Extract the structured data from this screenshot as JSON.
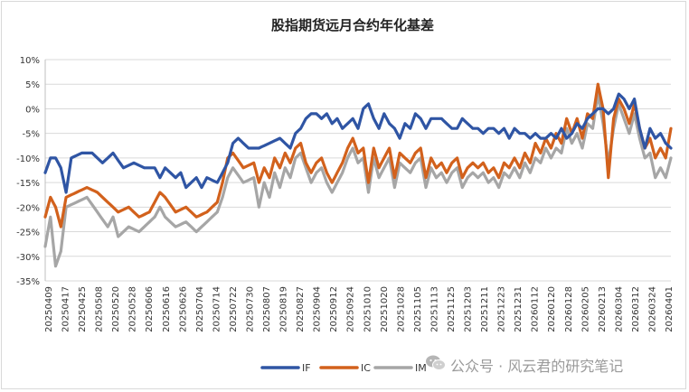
{
  "chart_data": {
    "type": "line",
    "title": "股指期货远月合约年化基差",
    "y_ticks": [
      "10%",
      "5%",
      "0%",
      "-5%",
      "-10%",
      "-15%",
      "-20%",
      "-25%",
      "-30%",
      "-35%"
    ],
    "y_tick_values": [
      10,
      5,
      0,
      -5,
      -10,
      -15,
      -20,
      -25,
      -30,
      -35
    ],
    "ylim": [
      -35,
      10
    ],
    "x_tick_labels": [
      "20250409",
      "20250417",
      "20250425",
      "20250508",
      "20250520",
      "20250528",
      "20250606",
      "20250616",
      "20250626",
      "20250704",
      "20250714",
      "20250722",
      "20250730",
      "20250807",
      "20250819",
      "20250827",
      "20250904",
      "20250912",
      "20250924",
      "20251010",
      "20251020",
      "20251028",
      "20251105",
      "20251113",
      "20251125",
      "20251203",
      "20251211",
      "20251223",
      "20251231",
      "20260112",
      "20260120",
      "20260128",
      "20260205",
      "20260213",
      "20260304",
      "20260312",
      "20260324",
      "20260401"
    ],
    "legend": [
      "IF",
      "IC",
      "IM"
    ],
    "legend_position": "bottom",
    "colors": {
      "IF": "#2f55a4",
      "IC": "#d2611c",
      "IM": "#a6a6a6"
    },
    "n_points": 241,
    "series": [
      {
        "name": "IF",
        "anchors": [
          [
            0,
            -13
          ],
          [
            2,
            -10
          ],
          [
            4,
            -10
          ],
          [
            6,
            -12
          ],
          [
            8,
            -17
          ],
          [
            10,
            -10
          ],
          [
            14,
            -9
          ],
          [
            18,
            -9
          ],
          [
            22,
            -11
          ],
          [
            26,
            -9
          ],
          [
            30,
            -12
          ],
          [
            34,
            -11
          ],
          [
            38,
            -12
          ],
          [
            42,
            -12
          ],
          [
            44,
            -14
          ],
          [
            46,
            -12
          ],
          [
            50,
            -14
          ],
          [
            52,
            -13
          ],
          [
            54,
            -16
          ],
          [
            58,
            -14
          ],
          [
            60,
            -16
          ],
          [
            62,
            -14
          ],
          [
            66,
            -15
          ],
          [
            68,
            -13
          ],
          [
            70,
            -11
          ],
          [
            72,
            -7
          ],
          [
            74,
            -6
          ],
          [
            78,
            -8
          ],
          [
            82,
            -8
          ],
          [
            86,
            -7
          ],
          [
            90,
            -6
          ],
          [
            94,
            -8
          ],
          [
            96,
            -5
          ],
          [
            98,
            -4
          ],
          [
            100,
            -2
          ],
          [
            102,
            -1
          ],
          [
            104,
            -1
          ],
          [
            106,
            -2
          ],
          [
            108,
            -1
          ],
          [
            110,
            -3
          ],
          [
            112,
            -2
          ],
          [
            114,
            -4
          ],
          [
            116,
            -3
          ],
          [
            118,
            -2
          ],
          [
            120,
            -4
          ],
          [
            122,
            0
          ],
          [
            124,
            1
          ],
          [
            126,
            -2
          ],
          [
            128,
            -4
          ],
          [
            130,
            -1
          ],
          [
            132,
            -3
          ],
          [
            134,
            -4
          ],
          [
            136,
            -6
          ],
          [
            138,
            -3
          ],
          [
            140,
            -4
          ],
          [
            142,
            -1
          ],
          [
            144,
            -2
          ],
          [
            146,
            -4
          ],
          [
            148,
            -2
          ],
          [
            150,
            -2
          ],
          [
            152,
            -2
          ],
          [
            154,
            -3
          ],
          [
            156,
            -4
          ],
          [
            158,
            -4
          ],
          [
            160,
            -2
          ],
          [
            162,
            -3
          ],
          [
            164,
            -4
          ],
          [
            166,
            -4
          ],
          [
            168,
            -5
          ],
          [
            170,
            -4
          ],
          [
            172,
            -4
          ],
          [
            174,
            -5
          ],
          [
            176,
            -4
          ],
          [
            178,
            -6
          ],
          [
            180,
            -4
          ],
          [
            182,
            -5
          ],
          [
            184,
            -5
          ],
          [
            186,
            -6
          ],
          [
            188,
            -5
          ],
          [
            190,
            -6
          ],
          [
            192,
            -6
          ],
          [
            194,
            -5
          ],
          [
            196,
            -6
          ],
          [
            198,
            -4
          ],
          [
            200,
            -6
          ],
          [
            202,
            -5
          ],
          [
            204,
            -3
          ],
          [
            206,
            -4
          ],
          [
            208,
            -2
          ],
          [
            210,
            -1
          ],
          [
            212,
            0
          ],
          [
            214,
            0
          ],
          [
            216,
            -1
          ],
          [
            218,
            0
          ],
          [
            220,
            3
          ],
          [
            222,
            2
          ],
          [
            224,
            0
          ],
          [
            226,
            2
          ],
          [
            228,
            -4
          ],
          [
            230,
            -8
          ],
          [
            232,
            -4
          ],
          [
            234,
            -6
          ],
          [
            236,
            -5
          ],
          [
            238,
            -7
          ],
          [
            240,
            -8
          ]
        ]
      },
      {
        "name": "IC",
        "anchors": [
          [
            0,
            -22
          ],
          [
            2,
            -18
          ],
          [
            4,
            -20
          ],
          [
            6,
            -24
          ],
          [
            8,
            -18
          ],
          [
            12,
            -17
          ],
          [
            16,
            -16
          ],
          [
            20,
            -17
          ],
          [
            24,
            -19
          ],
          [
            28,
            -21
          ],
          [
            32,
            -20
          ],
          [
            36,
            -22
          ],
          [
            40,
            -21
          ],
          [
            42,
            -19
          ],
          [
            44,
            -17
          ],
          [
            46,
            -18
          ],
          [
            50,
            -21
          ],
          [
            54,
            -20
          ],
          [
            58,
            -22
          ],
          [
            62,
            -21
          ],
          [
            66,
            -19
          ],
          [
            68,
            -15
          ],
          [
            70,
            -10
          ],
          [
            72,
            -9
          ],
          [
            76,
            -12
          ],
          [
            80,
            -11
          ],
          [
            82,
            -15
          ],
          [
            84,
            -12
          ],
          [
            86,
            -14
          ],
          [
            88,
            -10
          ],
          [
            90,
            -12
          ],
          [
            92,
            -9
          ],
          [
            94,
            -11
          ],
          [
            96,
            -8
          ],
          [
            98,
            -7
          ],
          [
            100,
            -11
          ],
          [
            102,
            -13
          ],
          [
            104,
            -11
          ],
          [
            106,
            -10
          ],
          [
            108,
            -13
          ],
          [
            110,
            -15
          ],
          [
            112,
            -13
          ],
          [
            114,
            -11
          ],
          [
            116,
            -8
          ],
          [
            118,
            -6
          ],
          [
            120,
            -9
          ],
          [
            122,
            -8
          ],
          [
            124,
            -15
          ],
          [
            126,
            -8
          ],
          [
            128,
            -12
          ],
          [
            130,
            -10
          ],
          [
            132,
            -8
          ],
          [
            134,
            -14
          ],
          [
            136,
            -9
          ],
          [
            138,
            -10
          ],
          [
            140,
            -11
          ],
          [
            142,
            -9
          ],
          [
            144,
            -8
          ],
          [
            146,
            -14
          ],
          [
            148,
            -10
          ],
          [
            150,
            -12
          ],
          [
            152,
            -11
          ],
          [
            154,
            -13
          ],
          [
            156,
            -11
          ],
          [
            158,
            -10
          ],
          [
            160,
            -14
          ],
          [
            162,
            -12
          ],
          [
            164,
            -11
          ],
          [
            166,
            -12
          ],
          [
            168,
            -11
          ],
          [
            170,
            -13
          ],
          [
            172,
            -12
          ],
          [
            174,
            -14
          ],
          [
            176,
            -11
          ],
          [
            178,
            -12
          ],
          [
            180,
            -10
          ],
          [
            182,
            -12
          ],
          [
            184,
            -9
          ],
          [
            186,
            -11
          ],
          [
            188,
            -7
          ],
          [
            190,
            -9
          ],
          [
            192,
            -6
          ],
          [
            194,
            -8
          ],
          [
            196,
            -5
          ],
          [
            198,
            -7
          ],
          [
            200,
            -2
          ],
          [
            202,
            -5
          ],
          [
            204,
            -2
          ],
          [
            206,
            -6
          ],
          [
            208,
            -1
          ],
          [
            210,
            -2
          ],
          [
            212,
            5
          ],
          [
            214,
            0
          ],
          [
            216,
            -14
          ],
          [
            218,
            -2
          ],
          [
            220,
            2
          ],
          [
            222,
            0
          ],
          [
            224,
            -3
          ],
          [
            226,
            1
          ],
          [
            228,
            -4
          ],
          [
            230,
            -8
          ],
          [
            232,
            -6
          ],
          [
            234,
            -10
          ],
          [
            236,
            -8
          ],
          [
            238,
            -10
          ],
          [
            240,
            -4
          ]
        ]
      },
      {
        "name": "IM",
        "anchors": [
          [
            0,
            -28
          ],
          [
            2,
            -22
          ],
          [
            4,
            -32
          ],
          [
            6,
            -29
          ],
          [
            8,
            -20
          ],
          [
            12,
            -19
          ],
          [
            16,
            -18
          ],
          [
            20,
            -21
          ],
          [
            24,
            -24
          ],
          [
            26,
            -22
          ],
          [
            28,
            -26
          ],
          [
            32,
            -24
          ],
          [
            36,
            -25
          ],
          [
            40,
            -23
          ],
          [
            42,
            -22
          ],
          [
            44,
            -20
          ],
          [
            46,
            -22
          ],
          [
            50,
            -24
          ],
          [
            54,
            -23
          ],
          [
            58,
            -25
          ],
          [
            62,
            -23
          ],
          [
            66,
            -21
          ],
          [
            68,
            -18
          ],
          [
            70,
            -14
          ],
          [
            72,
            -12
          ],
          [
            76,
            -15
          ],
          [
            80,
            -14
          ],
          [
            82,
            -20
          ],
          [
            84,
            -15
          ],
          [
            86,
            -18
          ],
          [
            88,
            -13
          ],
          [
            90,
            -16
          ],
          [
            92,
            -12
          ],
          [
            94,
            -14
          ],
          [
            96,
            -10
          ],
          [
            98,
            -9
          ],
          [
            100,
            -12
          ],
          [
            102,
            -15
          ],
          [
            104,
            -13
          ],
          [
            106,
            -12
          ],
          [
            108,
            -15
          ],
          [
            110,
            -17
          ],
          [
            112,
            -15
          ],
          [
            114,
            -13
          ],
          [
            116,
            -10
          ],
          [
            118,
            -8
          ],
          [
            120,
            -11
          ],
          [
            122,
            -10
          ],
          [
            124,
            -17
          ],
          [
            126,
            -10
          ],
          [
            128,
            -14
          ],
          [
            130,
            -12
          ],
          [
            132,
            -10
          ],
          [
            134,
            -16
          ],
          [
            136,
            -11
          ],
          [
            138,
            -12
          ],
          [
            140,
            -13
          ],
          [
            142,
            -11
          ],
          [
            144,
            -10
          ],
          [
            146,
            -16
          ],
          [
            148,
            -12
          ],
          [
            150,
            -14
          ],
          [
            152,
            -13
          ],
          [
            154,
            -15
          ],
          [
            156,
            -13
          ],
          [
            158,
            -12
          ],
          [
            160,
            -16
          ],
          [
            162,
            -14
          ],
          [
            164,
            -13
          ],
          [
            166,
            -14
          ],
          [
            168,
            -13
          ],
          [
            170,
            -15
          ],
          [
            172,
            -14
          ],
          [
            174,
            -16
          ],
          [
            176,
            -13
          ],
          [
            178,
            -14
          ],
          [
            180,
            -12
          ],
          [
            182,
            -14
          ],
          [
            184,
            -11
          ],
          [
            186,
            -13
          ],
          [
            188,
            -10
          ],
          [
            190,
            -11
          ],
          [
            192,
            -8
          ],
          [
            194,
            -10
          ],
          [
            196,
            -8
          ],
          [
            198,
            -9
          ],
          [
            200,
            -4
          ],
          [
            202,
            -7
          ],
          [
            204,
            -5
          ],
          [
            206,
            -8
          ],
          [
            208,
            -3
          ],
          [
            210,
            -4
          ],
          [
            212,
            3
          ],
          [
            214,
            -3
          ],
          [
            216,
            -11
          ],
          [
            218,
            -4
          ],
          [
            220,
            1
          ],
          [
            222,
            -2
          ],
          [
            224,
            -5
          ],
          [
            226,
            -1
          ],
          [
            228,
            -6
          ],
          [
            230,
            -10
          ],
          [
            232,
            -9
          ],
          [
            234,
            -14
          ],
          [
            236,
            -12
          ],
          [
            238,
            -14
          ],
          [
            240,
            -10
          ]
        ]
      }
    ]
  },
  "watermark": {
    "text": "公众号 · 风云君的研究笔记",
    "icon": "wechat-icon"
  }
}
